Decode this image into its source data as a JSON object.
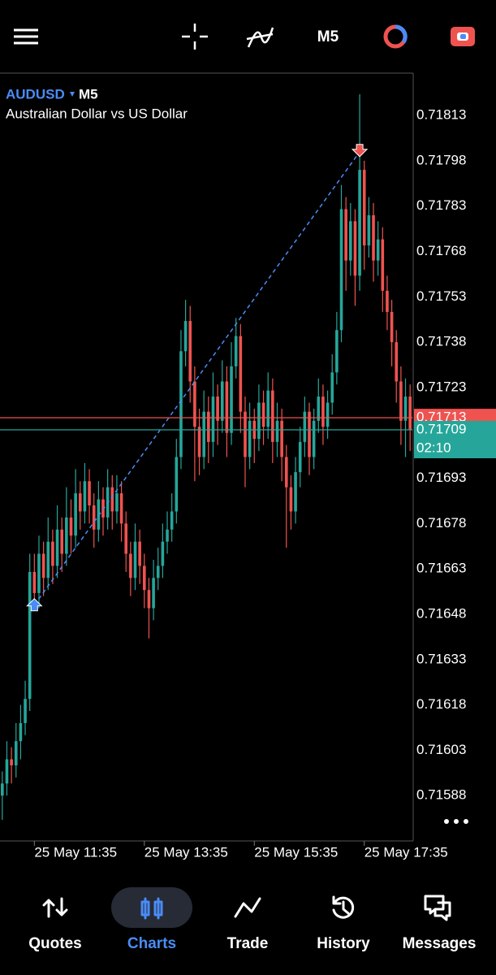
{
  "toolbar": {
    "timeframe": "M5"
  },
  "chart_data": {
    "type": "candlestick",
    "symbol": "AUDUSD",
    "timeframe": "M5",
    "description": "Australian Dollar vs US Dollar",
    "up_color": "#26a69a",
    "down_color": "#ef5350",
    "candles": [
      [
        0.71588,
        0.71596,
        0.7158,
        0.71592
      ],
      [
        0.71592,
        0.71606,
        0.71588,
        0.716
      ],
      [
        0.716,
        0.71604,
        0.71592,
        0.71598
      ],
      [
        0.71598,
        0.71612,
        0.71594,
        0.71606
      ],
      [
        0.71606,
        0.71618,
        0.716,
        0.71612
      ],
      [
        0.71612,
        0.71626,
        0.71608,
        0.7162
      ],
      [
        0.7162,
        0.71668,
        0.71616,
        0.71662
      ],
      [
        0.71662,
        0.71668,
        0.7165,
        0.71655
      ],
      [
        0.71655,
        0.71674,
        0.7165,
        0.71668
      ],
      [
        0.71668,
        0.71672,
        0.71654,
        0.7166
      ],
      [
        0.7166,
        0.7168,
        0.71656,
        0.71672
      ],
      [
        0.71672,
        0.71676,
        0.71658,
        0.71664
      ],
      [
        0.71664,
        0.71684,
        0.7166,
        0.71676
      ],
      [
        0.71676,
        0.7168,
        0.71662,
        0.71668
      ],
      [
        0.71668,
        0.7169,
        0.71664,
        0.7168
      ],
      [
        0.7168,
        0.71686,
        0.71668,
        0.71674
      ],
      [
        0.71674,
        0.71696,
        0.7167,
        0.71688
      ],
      [
        0.71688,
        0.71692,
        0.71676,
        0.71682
      ],
      [
        0.71682,
        0.71698,
        0.71678,
        0.71692
      ],
      [
        0.71692,
        0.71696,
        0.71678,
        0.71684
      ],
      [
        0.71684,
        0.71688,
        0.7167,
        0.71676
      ],
      [
        0.71676,
        0.71692,
        0.71672,
        0.71686
      ],
      [
        0.71686,
        0.7169,
        0.71674,
        0.7168
      ],
      [
        0.7168,
        0.71696,
        0.71676,
        0.7169
      ],
      [
        0.7169,
        0.71694,
        0.71676,
        0.71682
      ],
      [
        0.71682,
        0.71694,
        0.71678,
        0.71688
      ],
      [
        0.71688,
        0.71692,
        0.71672,
        0.71678
      ],
      [
        0.71678,
        0.71682,
        0.71662,
        0.71668
      ],
      [
        0.71668,
        0.71672,
        0.71654,
        0.7166
      ],
      [
        0.7166,
        0.71678,
        0.71656,
        0.71672
      ],
      [
        0.71672,
        0.71676,
        0.71658,
        0.71664
      ],
      [
        0.71664,
        0.71668,
        0.7165,
        0.71656
      ],
      [
        0.71656,
        0.7166,
        0.7164,
        0.7165
      ],
      [
        0.7165,
        0.71666,
        0.71646,
        0.7166
      ],
      [
        0.7166,
        0.7167,
        0.71656,
        0.71664
      ],
      [
        0.71664,
        0.71678,
        0.7166,
        0.71672
      ],
      [
        0.71672,
        0.71682,
        0.71668,
        0.71676
      ],
      [
        0.71676,
        0.71688,
        0.71672,
        0.71682
      ],
      [
        0.71682,
        0.71706,
        0.71678,
        0.717
      ],
      [
        0.717,
        0.71742,
        0.71696,
        0.71735
      ],
      [
        0.71735,
        0.71752,
        0.7173,
        0.71745
      ],
      [
        0.71745,
        0.7175,
        0.71718,
        0.71725
      ],
      [
        0.71725,
        0.7173,
        0.71692,
        0.7171
      ],
      [
        0.7171,
        0.71716,
        0.71694,
        0.717
      ],
      [
        0.717,
        0.71722,
        0.71696,
        0.71715
      ],
      [
        0.71715,
        0.7172,
        0.71698,
        0.71705
      ],
      [
        0.71705,
        0.71728,
        0.717,
        0.7172
      ],
      [
        0.7172,
        0.71724,
        0.71704,
        0.71712
      ],
      [
        0.71712,
        0.71732,
        0.71708,
        0.71725
      ],
      [
        0.71725,
        0.7173,
        0.717,
        0.71708
      ],
      [
        0.71708,
        0.71738,
        0.71704,
        0.7173
      ],
      [
        0.7173,
        0.71746,
        0.71726,
        0.7174
      ],
      [
        0.7174,
        0.71744,
        0.71708,
        0.71715
      ],
      [
        0.71715,
        0.7172,
        0.7169,
        0.717
      ],
      [
        0.717,
        0.71718,
        0.71696,
        0.71712
      ],
      [
        0.71712,
        0.71716,
        0.71698,
        0.71706
      ],
      [
        0.71706,
        0.71724,
        0.71702,
        0.71718
      ],
      [
        0.71718,
        0.71722,
        0.71704,
        0.7171
      ],
      [
        0.7171,
        0.71728,
        0.71706,
        0.71722
      ],
      [
        0.71722,
        0.71726,
        0.71698,
        0.71705
      ],
      [
        0.71705,
        0.71718,
        0.717,
        0.71712
      ],
      [
        0.71712,
        0.71716,
        0.71692,
        0.717
      ],
      [
        0.717,
        0.71704,
        0.7167,
        0.7169
      ],
      [
        0.7169,
        0.71694,
        0.71676,
        0.71682
      ],
      [
        0.71682,
        0.717,
        0.71678,
        0.71695
      ],
      [
        0.71695,
        0.7171,
        0.7169,
        0.71705
      ],
      [
        0.71705,
        0.7172,
        0.717,
        0.71715
      ],
      [
        0.71715,
        0.71718,
        0.71694,
        0.717
      ],
      [
        0.717,
        0.71716,
        0.71696,
        0.71712
      ],
      [
        0.71712,
        0.71726,
        0.71708,
        0.7172
      ],
      [
        0.7172,
        0.71724,
        0.71704,
        0.7171
      ],
      [
        0.7171,
        0.71722,
        0.71706,
        0.71718
      ],
      [
        0.71718,
        0.71734,
        0.71714,
        0.71728
      ],
      [
        0.71728,
        0.71748,
        0.71724,
        0.71742
      ],
      [
        0.71742,
        0.7179,
        0.71738,
        0.71782
      ],
      [
        0.71782,
        0.71786,
        0.71755,
        0.71765
      ],
      [
        0.71765,
        0.71784,
        0.7176,
        0.71778
      ],
      [
        0.71778,
        0.71782,
        0.7175,
        0.7176
      ],
      [
        0.7176,
        0.7182,
        0.71755,
        0.71795
      ],
      [
        0.71795,
        0.71798,
        0.71762,
        0.7177
      ],
      [
        0.7177,
        0.71786,
        0.71766,
        0.7178
      ],
      [
        0.7178,
        0.71784,
        0.71758,
        0.71765
      ],
      [
        0.71765,
        0.71778,
        0.7176,
        0.71772
      ],
      [
        0.71772,
        0.71776,
        0.71748,
        0.71755
      ],
      [
        0.71755,
        0.7176,
        0.71742,
        0.71748
      ],
      [
        0.71748,
        0.71752,
        0.7173,
        0.71738
      ],
      [
        0.71738,
        0.71742,
        0.71718,
        0.71725
      ],
      [
        0.71725,
        0.7173,
        0.71704,
        0.71712
      ],
      [
        0.71712,
        0.71726,
        0.717,
        0.7172
      ],
      [
        0.7172,
        0.71724,
        0.71702,
        0.71709
      ]
    ],
    "xlim": [
      -0.5,
      89.5
    ],
    "xticks": [
      {
        "value": 7,
        "label": "25 May 11:35"
      },
      {
        "value": 31,
        "label": "25 May 13:35"
      },
      {
        "value": 55,
        "label": "25 May 15:35"
      },
      {
        "value": 79,
        "label": "25 May 17:35"
      }
    ],
    "ylim": [
      0.71573,
      0.71827
    ],
    "yticks": [
      0.71813,
      0.71798,
      0.71783,
      0.71768,
      0.71753,
      0.71738,
      0.71723,
      0.71693,
      0.71678,
      0.71663,
      0.71648,
      0.71633,
      0.71618,
      0.71603,
      0.71588
    ],
    "ask": {
      "value": 0.71713,
      "color": "#ef5350"
    },
    "bid": {
      "value": 0.71709,
      "color": "#26a69a",
      "countdown": "02:10"
    },
    "trade": {
      "entry_candle": 7,
      "entry_price": 0.71651,
      "exit_candle": 78,
      "exit_price": 0.71801,
      "color": "#4a8cf7"
    }
  },
  "nav": {
    "items": [
      "Quotes",
      "Charts",
      "Trade",
      "History",
      "Messages"
    ],
    "active": 1
  }
}
